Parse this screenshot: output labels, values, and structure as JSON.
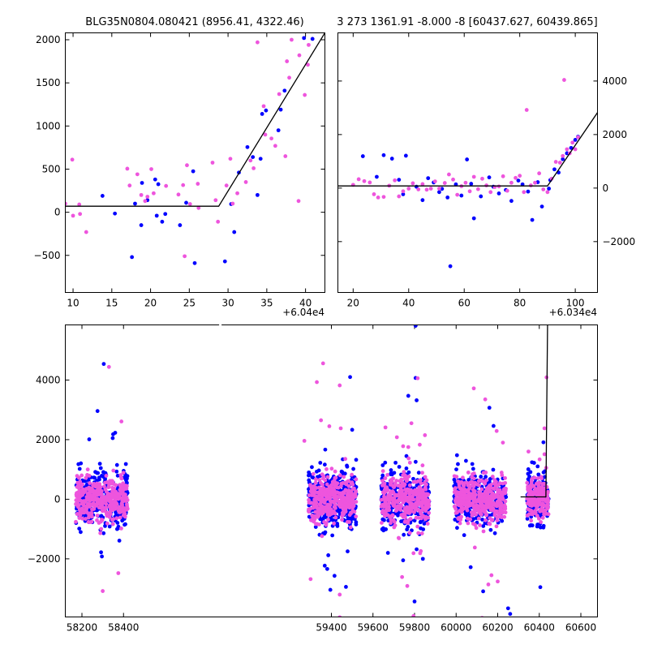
{
  "colors": {
    "series_a": "#0000ff",
    "series_b": "#ee55dd",
    "model": "#000000"
  },
  "chart_data": [
    {
      "type": "scatter",
      "title": "BLG35N0804.080421 (8956.41, 4322.46)",
      "xlim": [
        9,
        42.5
      ],
      "ylim": [
        -930,
        2080
      ],
      "xticks": [
        10,
        15,
        20,
        25,
        30,
        35,
        40
      ],
      "yticks": [
        -500,
        0,
        500,
        1000,
        1500,
        2000
      ],
      "x_offset_label": "+6.04e4",
      "model": [
        [
          9,
          70
        ],
        [
          28.8,
          70
        ],
        [
          42.5,
          2080
        ]
      ],
      "series": [
        {
          "color_key": "series_a",
          "points": [
            [
              13.8,
              190
            ],
            [
              15.4,
              -15
            ],
            [
              17.6,
              -520
            ],
            [
              18,
              100
            ],
            [
              18.8,
              -150
            ],
            [
              18.9,
              340
            ],
            [
              19.6,
              140
            ],
            [
              20.6,
              380
            ],
            [
              20.8,
              -40
            ],
            [
              21,
              325
            ],
            [
              21.5,
              -110
            ],
            [
              21.9,
              -20
            ],
            [
              23.8,
              -150
            ],
            [
              24.6,
              110
            ],
            [
              25.5,
              475
            ],
            [
              25.7,
              -590
            ],
            [
              29.6,
              -570
            ],
            [
              30.4,
              95
            ],
            [
              30.8,
              -230
            ],
            [
              31.4,
              460
            ],
            [
              32.5,
              755
            ],
            [
              33.2,
              640
            ],
            [
              33.8,
              200
            ],
            [
              34.2,
              620
            ],
            [
              34.4,
              1140
            ],
            [
              34.9,
              1180
            ],
            [
              36.5,
              950
            ],
            [
              36.8,
              1190
            ],
            [
              37.3,
              1410
            ],
            [
              40.9,
              2010
            ],
            [
              39.8,
              2020
            ]
          ]
        },
        {
          "color_key": "series_b",
          "points": [
            [
              9,
              100
            ],
            [
              9.9,
              610
            ],
            [
              10,
              -40
            ],
            [
              10.8,
              90
            ],
            [
              10.9,
              -20
            ],
            [
              11.7,
              -230
            ],
            [
              17,
              505
            ],
            [
              17.3,
              310
            ],
            [
              18.3,
              440
            ],
            [
              18.8,
              200
            ],
            [
              19.3,
              130
            ],
            [
              19.6,
              180
            ],
            [
              20.1,
              500
            ],
            [
              20.4,
              220
            ],
            [
              22,
              305
            ],
            [
              23.6,
              205
            ],
            [
              24.2,
              315
            ],
            [
              24.4,
              -510
            ],
            [
              24.7,
              545
            ],
            [
              25.1,
              95
            ],
            [
              26.1,
              330
            ],
            [
              26.2,
              50
            ],
            [
              28,
              575
            ],
            [
              28.4,
              140
            ],
            [
              28.7,
              -110
            ],
            [
              29.8,
              310
            ],
            [
              30.3,
              620
            ],
            [
              30.6,
              100
            ],
            [
              31.2,
              220
            ],
            [
              32.3,
              350
            ],
            [
              32.9,
              600
            ],
            [
              33.3,
              510
            ],
            [
              33.8,
              1970
            ],
            [
              34.6,
              1230
            ],
            [
              34.8,
              900
            ],
            [
              35.6,
              855
            ],
            [
              36.1,
              770
            ],
            [
              36.6,
              1370
            ],
            [
              37.4,
              650
            ],
            [
              37.6,
              1750
            ],
            [
              37.9,
              1560
            ],
            [
              38.2,
              2000
            ],
            [
              39.1,
              130
            ],
            [
              39.2,
              1820
            ],
            [
              39.9,
              1360
            ],
            [
              40.3,
              1710
            ],
            [
              40.4,
              1940
            ]
          ]
        }
      ]
    },
    {
      "type": "scatter",
      "title": "3 273 1361.91 -8.000 -8 [60437.627, 60439.865]",
      "xlim": [
        14.5,
        108
      ],
      "ylim": [
        -3900,
        5800
      ],
      "xticks": [
        20,
        40,
        60,
        80,
        100
      ],
      "yticks": [
        -2000,
        0,
        2000,
        4000
      ],
      "x_offset_label": "+6.034e4",
      "model": [
        [
          14.5,
          80
        ],
        [
          90,
          80
        ],
        [
          108,
          2820
        ]
      ],
      "series": [
        {
          "color_key": "series_a",
          "points": [
            [
              23.5,
              1190
            ],
            [
              28.5,
              420
            ],
            [
              31,
              1230
            ],
            [
              34,
              1100
            ],
            [
              36.5,
              310
            ],
            [
              38,
              -230
            ],
            [
              39,
              1210
            ],
            [
              42.8,
              50
            ],
            [
              45,
              -450
            ],
            [
              47,
              370
            ],
            [
              49,
              210
            ],
            [
              51,
              -150
            ],
            [
              52,
              -30
            ],
            [
              54,
              -350
            ],
            [
              55,
              -2920
            ],
            [
              57,
              140
            ],
            [
              59,
              -280
            ],
            [
              61,
              1070
            ],
            [
              62.5,
              160
            ],
            [
              63.5,
              -1130
            ],
            [
              66,
              -310
            ],
            [
              69,
              400
            ],
            [
              70.5,
              50
            ],
            [
              72.5,
              -200
            ],
            [
              75,
              -70
            ],
            [
              77,
              -480
            ],
            [
              79.5,
              280
            ],
            [
              81,
              140
            ],
            [
              83,
              -130
            ],
            [
              84.5,
              -1190
            ],
            [
              86.5,
              220
            ],
            [
              88,
              -690
            ],
            [
              90.5,
              -20
            ],
            [
              91,
              300
            ],
            [
              92.5,
              700
            ],
            [
              94,
              580
            ],
            [
              95.5,
              1080
            ],
            [
              97,
              1300
            ],
            [
              98.5,
              1500
            ],
            [
              100,
              1800
            ],
            [
              101,
              1920
            ]
          ]
        },
        {
          "color_key": "series_b",
          "points": [
            [
              20,
              120
            ],
            [
              22,
              330
            ],
            [
              24,
              260
            ],
            [
              26,
              210
            ],
            [
              27.5,
              -230
            ],
            [
              29,
              -350
            ],
            [
              31,
              -330
            ],
            [
              33,
              90
            ],
            [
              35,
              290
            ],
            [
              36.5,
              -310
            ],
            [
              38,
              -120
            ],
            [
              40,
              -20
            ],
            [
              41.5,
              180
            ],
            [
              43.5,
              -50
            ],
            [
              45,
              150
            ],
            [
              46.5,
              -60
            ],
            [
              48,
              -20
            ],
            [
              49.5,
              250
            ],
            [
              51,
              -20
            ],
            [
              53,
              190
            ],
            [
              54.5,
              510
            ],
            [
              56,
              320
            ],
            [
              57.5,
              -250
            ],
            [
              59,
              70
            ],
            [
              60.5,
              200
            ],
            [
              62,
              -120
            ],
            [
              63.5,
              420
            ],
            [
              65,
              -40
            ],
            [
              66.5,
              350
            ],
            [
              68,
              100
            ],
            [
              69.5,
              -150
            ],
            [
              71,
              40
            ],
            [
              72.5,
              60
            ],
            [
              74,
              440
            ],
            [
              75.5,
              -100
            ],
            [
              77,
              200
            ],
            [
              78.5,
              380
            ],
            [
              80,
              460
            ],
            [
              81.5,
              -150
            ],
            [
              82.5,
              2920
            ],
            [
              84,
              100
            ],
            [
              85.5,
              200
            ],
            [
              87,
              550
            ],
            [
              88.5,
              -50
            ],
            [
              90,
              -150
            ],
            [
              91.5,
              350
            ],
            [
              93,
              980
            ],
            [
              94.5,
              950
            ],
            [
              95.5,
              1200
            ],
            [
              96,
              4040
            ],
            [
              97,
              1450
            ],
            [
              98,
              1300
            ],
            [
              99,
              1700
            ],
            [
              100,
              1450
            ],
            [
              101,
              1900
            ]
          ]
        }
      ]
    },
    {
      "type": "scatter",
      "title": "",
      "xlim": [
        58120,
        60680
      ],
      "ylim": [
        -3950,
        5850
      ],
      "xticks": [
        58200,
        58400,
        59400,
        59600,
        59800,
        60000,
        60200,
        60400,
        60600
      ],
      "yticks": [
        -2000,
        0,
        2000,
        4000
      ],
      "axis_break": {
        "xmin": 58480,
        "xmax": 59240
      },
      "model": [
        [
          60310,
          80
        ],
        [
          60432,
          80
        ],
        [
          60440,
          6000
        ]
      ],
      "seasons": [
        {
          "range": [
            58170,
            58420
          ],
          "std": 420
        },
        {
          "range": [
            59290,
            59520
          ],
          "std": 430
        },
        {
          "range": [
            59640,
            59870
          ],
          "std": 440
        },
        {
          "range": [
            59990,
            60240
          ],
          "std": 420
        },
        {
          "range": [
            60340,
            60445
          ],
          "std": 380
        }
      ],
      "outliers_a": [
        [
          58305,
          4540
        ],
        [
          58275,
          2960
        ],
        [
          58235,
          2010
        ],
        [
          58350,
          2180
        ],
        [
          58348,
          2050
        ],
        [
          58360,
          2230
        ],
        [
          58292,
          -1780
        ],
        [
          58296,
          -1920
        ],
        [
          58380,
          -1390
        ],
        [
          59385,
          -1880
        ],
        [
          59368,
          -2230
        ],
        [
          59380,
          -2340
        ],
        [
          59415,
          -2570
        ],
        [
          59490,
          4100
        ],
        [
          59500,
          2330
        ],
        [
          59478,
          -1750
        ],
        [
          59470,
          -2940
        ],
        [
          59395,
          -3040
        ],
        [
          59770,
          3470
        ],
        [
          59805,
          4070
        ],
        [
          59810,
          3320
        ],
        [
          59805,
          5820
        ],
        [
          59800,
          -3430
        ],
        [
          59745,
          -2050
        ],
        [
          59840,
          -2000
        ],
        [
          59810,
          -1680
        ],
        [
          59672,
          -1800
        ],
        [
          60160,
          3070
        ],
        [
          60180,
          2460
        ],
        [
          60070,
          -2280
        ],
        [
          60250,
          -3660
        ],
        [
          60260,
          -3850
        ],
        [
          60130,
          -3090
        ],
        [
          60405,
          -2950
        ],
        [
          60365,
          1240
        ],
        [
          60375,
          1220
        ],
        [
          60420,
          1910
        ]
      ],
      "outliers_b": [
        [
          58330,
          4440
        ],
        [
          58390,
          2610
        ],
        [
          58375,
          -2480
        ],
        [
          58300,
          -3080
        ],
        [
          58228,
          1000
        ],
        [
          59270,
          1960
        ],
        [
          59330,
          3930
        ],
        [
          59360,
          4560
        ],
        [
          59350,
          2650
        ],
        [
          59390,
          2450
        ],
        [
          59440,
          3820
        ],
        [
          59445,
          2380
        ],
        [
          59300,
          -2680
        ],
        [
          59440,
          -3200
        ],
        [
          59440,
          -3960
        ],
        [
          59660,
          2410
        ],
        [
          59715,
          2080
        ],
        [
          59745,
          1780
        ],
        [
          59770,
          1750
        ],
        [
          59815,
          4060
        ],
        [
          59785,
          2550
        ],
        [
          59825,
          1830
        ],
        [
          59850,
          2150
        ],
        [
          59725,
          -1310
        ],
        [
          59795,
          -1810
        ],
        [
          59830,
          -1740
        ],
        [
          59827,
          -1810
        ],
        [
          59765,
          -2910
        ],
        [
          59795,
          -3920
        ],
        [
          59740,
          -2610
        ],
        [
          60085,
          3720
        ],
        [
          60140,
          3350
        ],
        [
          60195,
          2290
        ],
        [
          60225,
          1900
        ],
        [
          60090,
          -1620
        ],
        [
          60200,
          -2760
        ],
        [
          60155,
          -2860
        ],
        [
          60170,
          -2550
        ],
        [
          60125,
          -3980
        ],
        [
          60435,
          4090
        ],
        [
          60425,
          2380
        ],
        [
          60425,
          1510
        ],
        [
          60348,
          1600
        ]
      ]
    }
  ]
}
